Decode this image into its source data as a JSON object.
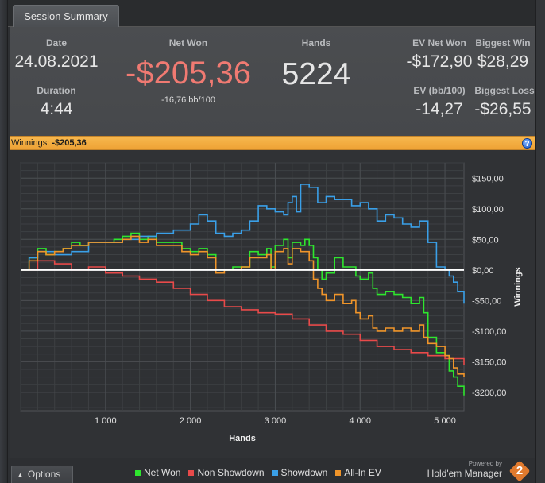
{
  "tab": {
    "label": "Session Summary"
  },
  "summary": {
    "date_label": "Date",
    "date_value": "24.08.2021",
    "duration_label": "Duration",
    "duration_value": "4:44",
    "net_won_label": "Net Won",
    "net_won_value": "-$205,36",
    "bb100_value": "-16,76 bb/100",
    "hands_label": "Hands",
    "hands_value": "5224",
    "ev_net_won_label": "EV Net Won",
    "ev_net_won_value": "-$172,90",
    "biggest_win_label": "Biggest Win",
    "biggest_win_value": "$28,29",
    "ev_bb100_label": "EV (bb/100)",
    "ev_bb100_value": "-14,27",
    "biggest_loss_label": "Biggest Loss",
    "biggest_loss_value": "-$26,55"
  },
  "banner": {
    "label": "Winnings:",
    "value": "-$205,36",
    "help_icon": "question-icon"
  },
  "chart_data": {
    "type": "line",
    "xlabel": "Hands",
    "ylabel": "Winnings",
    "xlim": [
      0,
      5224
    ],
    "ylim": [
      -230,
      175
    ],
    "x_ticks": [
      1000,
      2000,
      3000,
      4000,
      5000
    ],
    "x_tick_labels": [
      "1 000",
      "2 000",
      "3 000",
      "4 000",
      "5 000"
    ],
    "y_ticks": [
      150,
      100,
      50,
      0,
      -50,
      -100,
      -150,
      -200
    ],
    "y_tick_labels": [
      "$150,00",
      "$100,00",
      "$50,00",
      "$0,00",
      "-$50,00",
      "-$100,00",
      "-$150,00",
      "-$200,00"
    ],
    "grid": true,
    "zero_line": true,
    "series": [
      {
        "name": "Net Won",
        "color": "#2ee62e",
        "points": [
          [
            0,
            0
          ],
          [
            100,
            20
          ],
          [
            200,
            35
          ],
          [
            300,
            25
          ],
          [
            400,
            30
          ],
          [
            500,
            35
          ],
          [
            600,
            45
          ],
          [
            700,
            40
          ],
          [
            800,
            45
          ],
          [
            900,
            45
          ],
          [
            1000,
            45
          ],
          [
            1100,
            50
          ],
          [
            1200,
            55
          ],
          [
            1300,
            60
          ],
          [
            1400,
            50
          ],
          [
            1500,
            55
          ],
          [
            1600,
            45
          ],
          [
            1700,
            45
          ],
          [
            1800,
            45
          ],
          [
            1900,
            35
          ],
          [
            2000,
            30
          ],
          [
            2100,
            35
          ],
          [
            2200,
            25
          ],
          [
            2300,
            0
          ],
          [
            2400,
            0
          ],
          [
            2500,
            5
          ],
          [
            2600,
            5
          ],
          [
            2700,
            30
          ],
          [
            2800,
            25
          ],
          [
            2900,
            35
          ],
          [
            2950,
            5
          ],
          [
            3000,
            40
          ],
          [
            3100,
            50
          ],
          [
            3150,
            20
          ],
          [
            3200,
            45
          ],
          [
            3300,
            40
          ],
          [
            3350,
            50
          ],
          [
            3400,
            40
          ],
          [
            3450,
            20
          ],
          [
            3500,
            0
          ],
          [
            3550,
            -15
          ],
          [
            3600,
            -5
          ],
          [
            3700,
            20
          ],
          [
            3800,
            5
          ],
          [
            3900,
            5
          ],
          [
            3950,
            -10
          ],
          [
            4000,
            -15
          ],
          [
            4100,
            -5
          ],
          [
            4150,
            -30
          ],
          [
            4200,
            -40
          ],
          [
            4300,
            -35
          ],
          [
            4400,
            -40
          ],
          [
            4500,
            -45
          ],
          [
            4600,
            -55
          ],
          [
            4700,
            -45
          ],
          [
            4750,
            -70
          ],
          [
            4800,
            -110
          ],
          [
            4900,
            -135
          ],
          [
            5000,
            -140
          ],
          [
            5050,
            -165
          ],
          [
            5100,
            -175
          ],
          [
            5150,
            -190
          ],
          [
            5224,
            -205
          ]
        ]
      },
      {
        "name": "Non Showdown",
        "color": "#e84a4a",
        "points": [
          [
            0,
            0
          ],
          [
            200,
            15
          ],
          [
            400,
            10
          ],
          [
            600,
            0
          ],
          [
            800,
            5
          ],
          [
            1000,
            -5
          ],
          [
            1200,
            -10
          ],
          [
            1400,
            -15
          ],
          [
            1600,
            -20
          ],
          [
            1800,
            -30
          ],
          [
            2000,
            -40
          ],
          [
            2200,
            -50
          ],
          [
            2400,
            -60
          ],
          [
            2600,
            -65
          ],
          [
            2800,
            -70
          ],
          [
            3000,
            -72
          ],
          [
            3200,
            -80
          ],
          [
            3400,
            -90
          ],
          [
            3600,
            -100
          ],
          [
            3800,
            -105
          ],
          [
            4000,
            -115
          ],
          [
            4200,
            -125
          ],
          [
            4400,
            -130
          ],
          [
            4600,
            -135
          ],
          [
            4800,
            -140
          ],
          [
            5000,
            -145
          ],
          [
            5224,
            -155
          ]
        ]
      },
      {
        "name": "Showdown",
        "color": "#3aa0e8",
        "points": [
          [
            0,
            0
          ],
          [
            100,
            20
          ],
          [
            200,
            30
          ],
          [
            400,
            25
          ],
          [
            600,
            30
          ],
          [
            800,
            45
          ],
          [
            1000,
            45
          ],
          [
            1200,
            50
          ],
          [
            1400,
            55
          ],
          [
            1600,
            60
          ],
          [
            1800,
            65
          ],
          [
            2000,
            75
          ],
          [
            2100,
            90
          ],
          [
            2200,
            80
          ],
          [
            2300,
            60
          ],
          [
            2400,
            55
          ],
          [
            2500,
            60
          ],
          [
            2600,
            65
          ],
          [
            2700,
            80
          ],
          [
            2800,
            105
          ],
          [
            2900,
            100
          ],
          [
            3000,
            95
          ],
          [
            3100,
            90
          ],
          [
            3150,
            110
          ],
          [
            3200,
            120
          ],
          [
            3250,
            95
          ],
          [
            3300,
            140
          ],
          [
            3400,
            135
          ],
          [
            3500,
            110
          ],
          [
            3600,
            120
          ],
          [
            3700,
            115
          ],
          [
            3800,
            115
          ],
          [
            3900,
            105
          ],
          [
            4000,
            110
          ],
          [
            4100,
            100
          ],
          [
            4200,
            80
          ],
          [
            4300,
            90
          ],
          [
            4400,
            85
          ],
          [
            4500,
            75
          ],
          [
            4600,
            70
          ],
          [
            4700,
            80
          ],
          [
            4800,
            45
          ],
          [
            4900,
            5
          ],
          [
            5000,
            0
          ],
          [
            5050,
            -10
          ],
          [
            5100,
            -20
          ],
          [
            5150,
            -35
          ],
          [
            5224,
            -55
          ]
        ]
      },
      {
        "name": "All-In EV",
        "color": "#f0952a",
        "points": [
          [
            0,
            0
          ],
          [
            100,
            15
          ],
          [
            200,
            30
          ],
          [
            300,
            25
          ],
          [
            400,
            30
          ],
          [
            500,
            35
          ],
          [
            600,
            40
          ],
          [
            700,
            40
          ],
          [
            800,
            45
          ],
          [
            900,
            45
          ],
          [
            1000,
            45
          ],
          [
            1100,
            45
          ],
          [
            1200,
            50
          ],
          [
            1300,
            55
          ],
          [
            1400,
            45
          ],
          [
            1500,
            50
          ],
          [
            1600,
            40
          ],
          [
            1700,
            40
          ],
          [
            1800,
            40
          ],
          [
            1900,
            30
          ],
          [
            2000,
            25
          ],
          [
            2100,
            30
          ],
          [
            2200,
            20
          ],
          [
            2300,
            -5
          ],
          [
            2400,
            0
          ],
          [
            2500,
            0
          ],
          [
            2600,
            5
          ],
          [
            2700,
            20
          ],
          [
            2800,
            20
          ],
          [
            2900,
            25
          ],
          [
            2950,
            0
          ],
          [
            3000,
            30
          ],
          [
            3100,
            35
          ],
          [
            3150,
            10
          ],
          [
            3200,
            35
          ],
          [
            3300,
            30
          ],
          [
            3350,
            30
          ],
          [
            3400,
            15
          ],
          [
            3450,
            -15
          ],
          [
            3500,
            -30
          ],
          [
            3550,
            -40
          ],
          [
            3600,
            -50
          ],
          [
            3700,
            -40
          ],
          [
            3800,
            -55
          ],
          [
            3900,
            -50
          ],
          [
            3950,
            -70
          ],
          [
            4000,
            -80
          ],
          [
            4100,
            -75
          ],
          [
            4150,
            -95
          ],
          [
            4200,
            -100
          ],
          [
            4300,
            -95
          ],
          [
            4400,
            -100
          ],
          [
            4500,
            -95
          ],
          [
            4600,
            -100
          ],
          [
            4700,
            -90
          ],
          [
            4750,
            -110
          ],
          [
            4800,
            -120
          ],
          [
            4900,
            -125
          ],
          [
            5000,
            -140
          ],
          [
            5050,
            -145
          ],
          [
            5100,
            -160
          ],
          [
            5150,
            -170
          ],
          [
            5224,
            -175
          ]
        ]
      }
    ]
  },
  "bottom": {
    "options_label": "Options",
    "options_icon": "caret-up-icon",
    "powered_by": "Powered by",
    "brand_name": "Hold'em Manager",
    "brand_number": "2"
  }
}
